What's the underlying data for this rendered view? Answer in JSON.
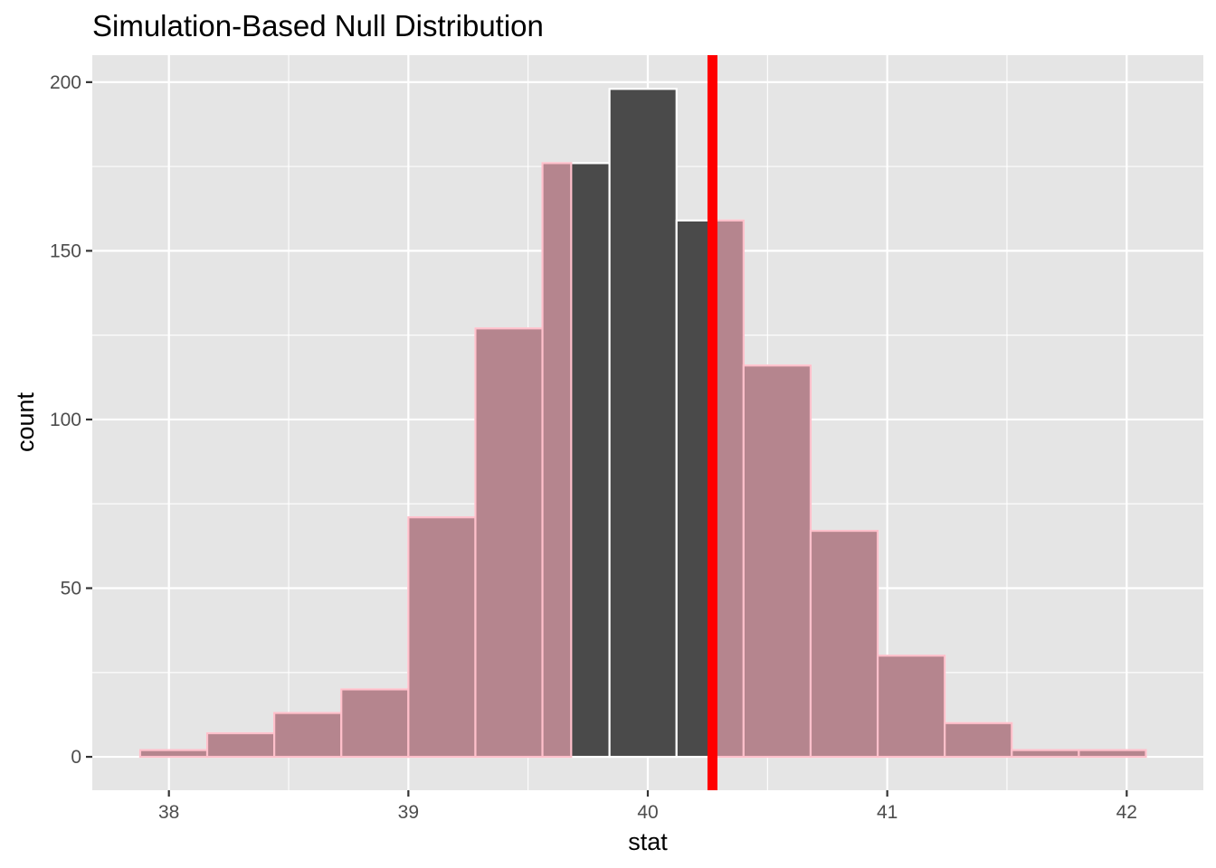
{
  "chart_data": {
    "type": "bar",
    "title": "Simulation-Based Null Distribution",
    "xlabel": "stat",
    "ylabel": "count",
    "xlim": [
      37.68,
      42.32
    ],
    "ylim": [
      -9.9,
      208
    ],
    "x_ticks": [
      38,
      39,
      40,
      41,
      42
    ],
    "y_ticks": [
      0,
      50,
      100,
      150,
      200
    ],
    "bin_width": 0.28,
    "bins": [
      {
        "x0": 37.88,
        "x1": 38.16,
        "count": 2
      },
      {
        "x0": 38.16,
        "x1": 38.44,
        "count": 7
      },
      {
        "x0": 38.44,
        "x1": 38.72,
        "count": 13
      },
      {
        "x0": 38.72,
        "x1": 39.0,
        "count": 20
      },
      {
        "x0": 39.0,
        "x1": 39.28,
        "count": 71
      },
      {
        "x0": 39.28,
        "x1": 39.56,
        "count": 127
      },
      {
        "x0": 39.56,
        "x1": 39.84,
        "count": 176
      },
      {
        "x0": 39.84,
        "x1": 40.12,
        "count": 198
      },
      {
        "x0": 40.12,
        "x1": 40.4,
        "count": 159
      },
      {
        "x0": 40.4,
        "x1": 40.68,
        "count": 116
      },
      {
        "x0": 40.68,
        "x1": 40.96,
        "count": 67
      },
      {
        "x0": 40.96,
        "x1": 41.24,
        "count": 30
      },
      {
        "x0": 41.24,
        "x1": 41.52,
        "count": 10
      },
      {
        "x0": 41.52,
        "x1": 41.8,
        "count": 2
      },
      {
        "x0": 41.8,
        "x1": 42.08,
        "count": 2
      }
    ],
    "shaded_region": [
      39.68,
      40.26
    ],
    "observed_stat": 40.27,
    "legend": "none",
    "grid": true,
    "colors": {
      "panel_background": "#e5e5e5",
      "grid": "#ffffff",
      "bar_fill": "#4a4a4a",
      "bar_outline": "#ffffff",
      "shade_fill": "#b5858e",
      "shade_outline": "#ffc0cb",
      "observed_line": "#ff0000"
    }
  }
}
